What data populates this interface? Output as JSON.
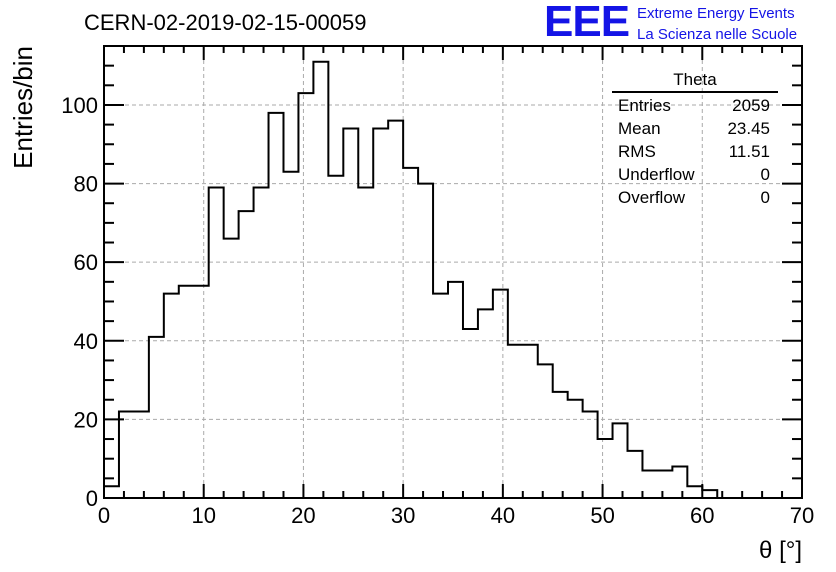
{
  "header": {
    "run_id": "CERN-02-2019-02-15-00059"
  },
  "logo": {
    "mark": "EEE",
    "line1": "Extreme Energy Events",
    "line2": "La Scienza nelle Scuole",
    "color": "#1414e6"
  },
  "stats_box": {
    "title": "Theta",
    "rows": [
      {
        "label": "Entries",
        "value": "2059"
      },
      {
        "label": "Mean",
        "value": "23.45"
      },
      {
        "label": "RMS",
        "value": "11.51"
      },
      {
        "label": "Underflow",
        "value": "0"
      },
      {
        "label": "Overflow",
        "value": "0"
      }
    ]
  },
  "chart_data": {
    "type": "bar",
    "style": "step-histogram",
    "xlabel": "θ [°]",
    "ylabel": "Entries/bin",
    "xlim": [
      0,
      70
    ],
    "ylim": [
      0,
      115
    ],
    "grid": true,
    "x_ticks": [
      0,
      10,
      20,
      30,
      40,
      50,
      60,
      70
    ],
    "y_ticks": [
      0,
      20,
      40,
      60,
      80,
      100
    ],
    "bin_width": 1.5,
    "bin_edges_start": 0,
    "values": [
      3,
      22,
      22,
      41,
      52,
      54,
      54,
      79,
      66,
      73,
      79,
      98,
      83,
      103,
      111,
      82,
      94,
      79,
      94,
      96,
      84,
      80,
      52,
      55,
      43,
      48,
      53,
      39,
      39,
      34,
      27,
      25,
      22,
      15,
      19,
      12,
      7,
      7,
      8,
      3,
      2,
      0,
      0,
      0,
      0,
      0,
      0
    ]
  }
}
